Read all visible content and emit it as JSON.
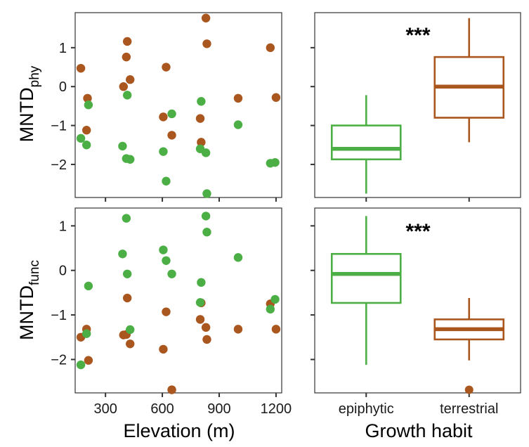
{
  "colors": {
    "epiphytic": "#4caf45",
    "terrestrial": "#a9561f"
  },
  "labels": {
    "ylabel_top_main": "MNTD",
    "ylabel_top_sub": "phy",
    "ylabel_bottom_main": "MNTD",
    "ylabel_bottom_sub": "func",
    "xlabel_left": "Elevation (m)",
    "xlabel_right": "Growth habit",
    "sig_top": "***",
    "sig_bottom": "***"
  },
  "chart_data": [
    {
      "id": "phy-scatter",
      "type": "scatter",
      "xlabel": "",
      "ylabel": "MNTDphy",
      "xlim": [
        140,
        1230
      ],
      "ylim": [
        -2.85,
        1.9
      ],
      "xticks": [
        300,
        600,
        900,
        1200
      ],
      "xtick_labels": [],
      "yticks": [
        1,
        0,
        -1,
        -2
      ],
      "ytick_labels": [
        "1",
        "0",
        "−1",
        "−2"
      ],
      "series": [
        {
          "group": "terrestrial",
          "points": [
            [
              170,
              0.47
            ],
            [
              205,
              -0.3
            ],
            [
              200,
              -1.12
            ],
            [
              395,
              0.0
            ],
            [
              410,
              0.76
            ],
            [
              415,
              1.16
            ],
            [
              430,
              0.18
            ],
            [
              605,
              -0.78
            ],
            [
              620,
              0.5
            ],
            [
              650,
              -1.25
            ],
            [
              800,
              -0.82
            ],
            [
              805,
              -1.43
            ],
            [
              830,
              1.76
            ],
            [
              835,
              1.1
            ],
            [
              1000,
              -0.3
            ],
            [
              1170,
              1.0
            ],
            [
              1200,
              -0.28
            ]
          ]
        },
        {
          "group": "epiphytic",
          "points": [
            [
              170,
              -1.33
            ],
            [
              200,
              -1.5
            ],
            [
              210,
              -0.47
            ],
            [
              390,
              -1.53
            ],
            [
              410,
              -1.85
            ],
            [
              415,
              -0.22
            ],
            [
              430,
              -1.87
            ],
            [
              605,
              -1.67
            ],
            [
              620,
              -2.43
            ],
            [
              650,
              -0.7
            ],
            [
              800,
              -1.6
            ],
            [
              805,
              -0.38
            ],
            [
              830,
              -1.7
            ],
            [
              835,
              -2.75
            ],
            [
              1000,
              -0.98
            ],
            [
              1170,
              -1.97
            ],
            [
              1195,
              -1.95
            ]
          ]
        }
      ]
    },
    {
      "id": "phy-box",
      "type": "box",
      "categories": [
        "epiphytic",
        "terrestrial"
      ],
      "ylim": [
        -2.85,
        1.9
      ],
      "boxes": [
        {
          "group": "epiphytic",
          "whisker_low": -2.75,
          "q1": -1.87,
          "median": -1.6,
          "q3": -1.0,
          "whisker_high": -0.22,
          "outliers": []
        },
        {
          "group": "terrestrial",
          "whisker_low": -1.43,
          "q1": -0.8,
          "median": 0.0,
          "q3": 0.76,
          "whisker_high": 1.76,
          "outliers": []
        }
      ]
    },
    {
      "id": "func-scatter",
      "type": "scatter",
      "xlabel": "Elevation (m)",
      "ylabel": "MNTDfunc",
      "xlim": [
        140,
        1230
      ],
      "ylim": [
        -2.75,
        1.4
      ],
      "xticks": [
        300,
        600,
        900,
        1200
      ],
      "xtick_labels": [
        "300",
        "600",
        "900",
        "1200"
      ],
      "yticks": [
        1,
        0,
        -1,
        -2
      ],
      "ytick_labels": [
        "1",
        "0",
        "−1",
        "−2"
      ],
      "series": [
        {
          "group": "terrestrial",
          "points": [
            [
              170,
              -1.5
            ],
            [
              200,
              -1.32
            ],
            [
              210,
              -2.02
            ],
            [
              395,
              -1.45
            ],
            [
              410,
              -1.44
            ],
            [
              415,
              -0.62
            ],
            [
              430,
              -1.65
            ],
            [
              605,
              -1.77
            ],
            [
              620,
              -0.93
            ],
            [
              650,
              -2.68
            ],
            [
              800,
              -1.1
            ],
            [
              805,
              -0.73
            ],
            [
              830,
              -1.28
            ],
            [
              835,
              -1.55
            ],
            [
              1000,
              -1.32
            ],
            [
              1170,
              -0.75
            ],
            [
              1200,
              -1.32
            ]
          ]
        },
        {
          "group": "epiphytic",
          "points": [
            [
              170,
              -2.12
            ],
            [
              200,
              -1.42
            ],
            [
              210,
              -0.35
            ],
            [
              390,
              0.37
            ],
            [
              410,
              1.17
            ],
            [
              415,
              -0.08
            ],
            [
              430,
              -1.33
            ],
            [
              605,
              0.46
            ],
            [
              620,
              0.22
            ],
            [
              650,
              -0.08
            ],
            [
              800,
              -0.72
            ],
            [
              805,
              -0.27
            ],
            [
              830,
              1.22
            ],
            [
              835,
              0.86
            ],
            [
              1000,
              0.29
            ],
            [
              1170,
              -0.87
            ],
            [
              1195,
              -0.65
            ]
          ]
        }
      ]
    },
    {
      "id": "func-box",
      "type": "box",
      "categories": [
        "epiphytic",
        "terrestrial"
      ],
      "category_labels": [
        "epiphytic",
        "terrestrial"
      ],
      "xlabel": "Growth habit",
      "ylim": [
        -2.75,
        1.4
      ],
      "boxes": [
        {
          "group": "epiphytic",
          "whisker_low": -2.12,
          "q1": -0.73,
          "median": -0.08,
          "q3": 0.37,
          "whisker_high": 1.22,
          "outliers": []
        },
        {
          "group": "terrestrial",
          "whisker_low": -2.02,
          "q1": -1.55,
          "median": -1.32,
          "q3": -1.1,
          "whisker_high": -0.62,
          "outliers": [
            -2.68
          ]
        }
      ]
    }
  ]
}
